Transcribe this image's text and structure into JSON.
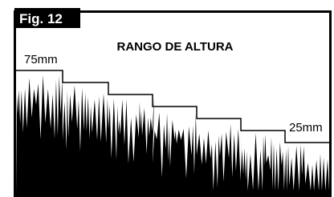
{
  "figure": {
    "label": "Fig. 12",
    "title": "RANGO DE ALTURA",
    "max_label": "75mm",
    "min_label": "25mm"
  }
}
